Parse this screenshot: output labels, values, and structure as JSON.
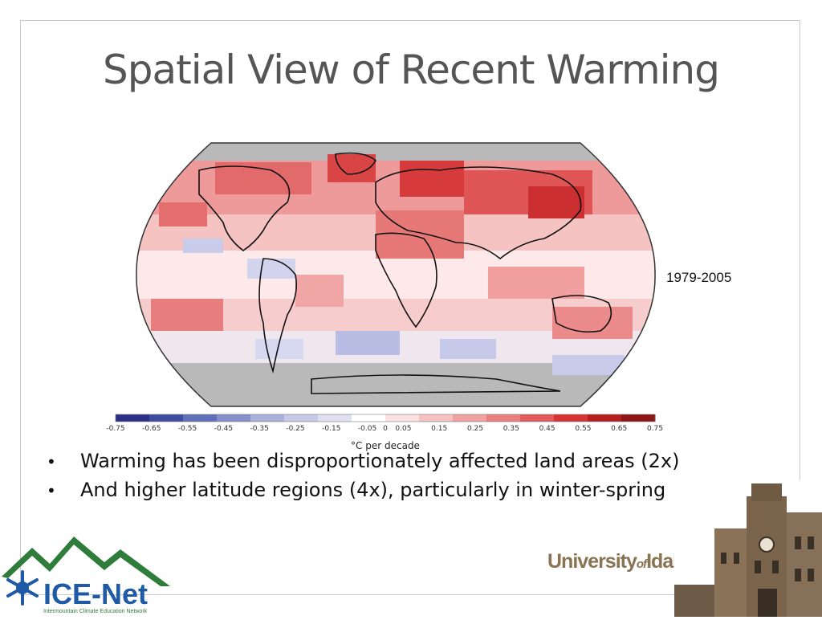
{
  "slide": {
    "title": "Spatial View of Recent Warming",
    "period_label": "1979-2005",
    "bullets": [
      "Warming has been disproportionately affected land areas (2x)",
      "And higher latitude regions (4x), particularly in winter-spring"
    ]
  },
  "colorbar": {
    "tick_labels": [
      "-0.75",
      "-0.65",
      "-0.55",
      "-0.45",
      "-0.35",
      "-0.25",
      "-0.15",
      "-0.05",
      "0",
      "0.05",
      "0.15",
      "0.25",
      "0.35",
      "0.45",
      "0.55",
      "0.65",
      "0.75"
    ],
    "unit_label": "°C per decade",
    "colors": [
      "#2b2f86",
      "#3d4ba0",
      "#5f6fba",
      "#8590cb",
      "#a9b0db",
      "#c6cae8",
      "#dfe1f2",
      "#ffffff",
      "#fbe0e0",
      "#f6c1c1",
      "#f0a1a1",
      "#ea7f7f",
      "#e25a5a",
      "#d63333",
      "#b81e1e",
      "#8e1515"
    ]
  },
  "logos": {
    "icenet_name": "ICE-Net",
    "icenet_subtitle": "Intermountain Climate Education Network",
    "university_prefix": "University",
    "university_of": "of",
    "university_suffix": "Idaho"
  },
  "colors": {
    "title": "#555555",
    "icenet_blue": "#1f5aa6",
    "icenet_green": "#2f7d3a",
    "uidaho_gold": "#8a7352"
  }
}
